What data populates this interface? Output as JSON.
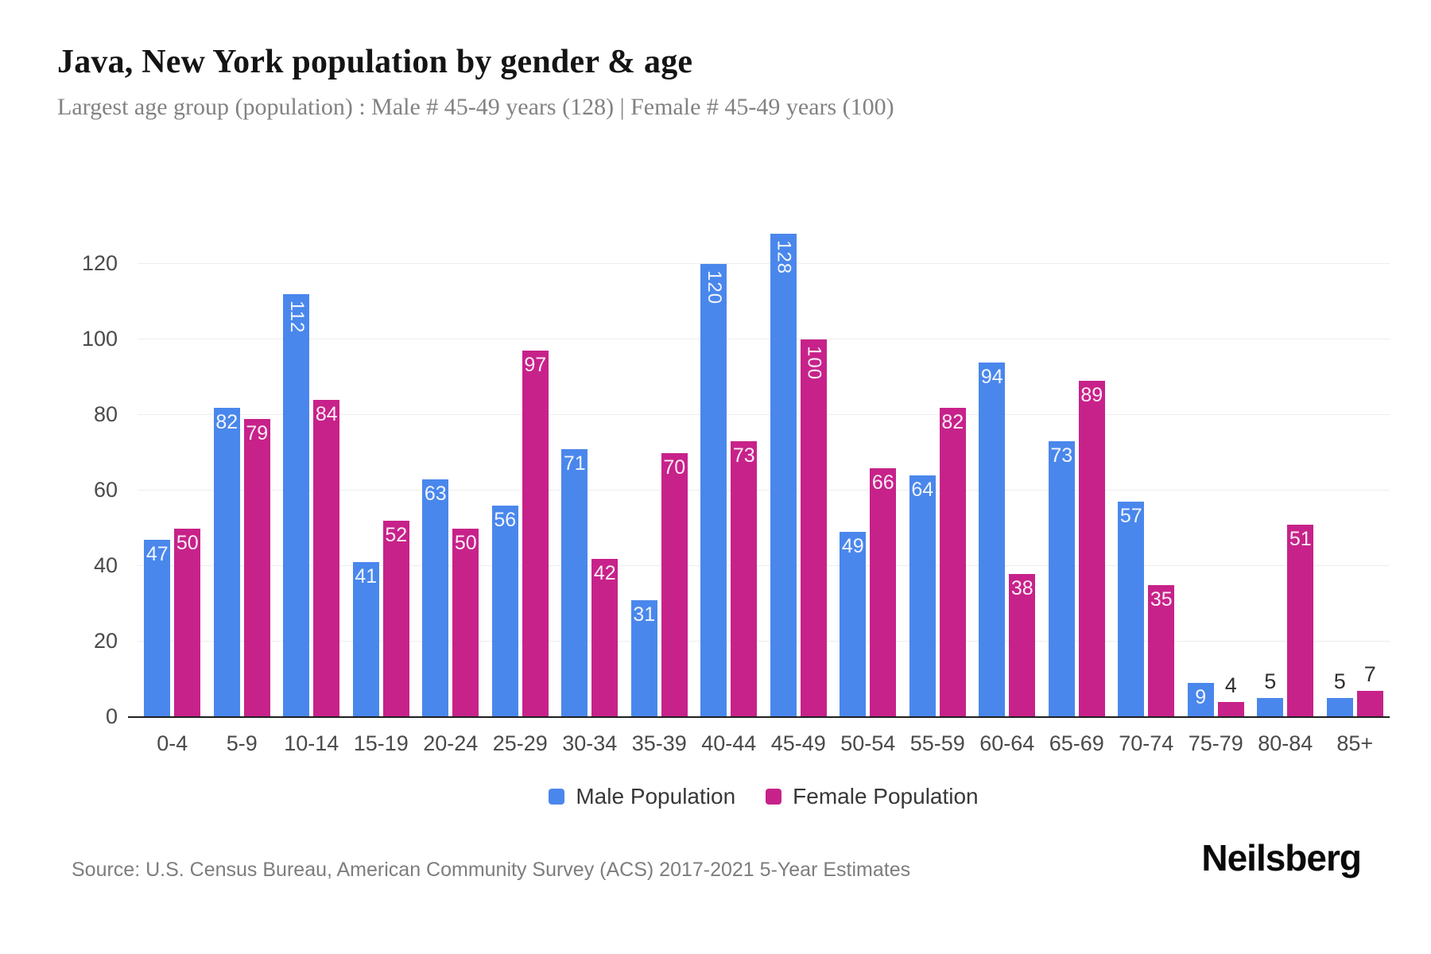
{
  "header": {
    "title": "Java, New York population by gender & age",
    "subtitle": "Largest age group (population) : Male # 45-49 years (128) | Female # 45-49 years (100)"
  },
  "chart_data": {
    "type": "bar",
    "title": "Java, New York population by gender & age",
    "categories": [
      "0-4",
      "5-9",
      "10-14",
      "15-19",
      "20-24",
      "25-29",
      "30-34",
      "35-39",
      "40-44",
      "45-49",
      "50-54",
      "55-59",
      "60-64",
      "65-69",
      "70-74",
      "75-79",
      "80-84",
      "85+"
    ],
    "series": [
      {
        "name": "Male Population",
        "color": "#4A87EC",
        "values": [
          47,
          82,
          112,
          41,
          63,
          56,
          71,
          31,
          120,
          128,
          49,
          64,
          94,
          73,
          57,
          9,
          5,
          5
        ]
      },
      {
        "name": "Female Population",
        "color": "#C7228A",
        "values": [
          50,
          79,
          84,
          52,
          50,
          97,
          42,
          70,
          73,
          100,
          66,
          82,
          38,
          89,
          35,
          4,
          51,
          7
        ]
      }
    ],
    "xlabel": "",
    "ylabel": "",
    "yticks": [
      0,
      20,
      40,
      60,
      80,
      100,
      120
    ],
    "ylim": [
      0,
      135
    ],
    "grid": "horizontal",
    "legend_position": "bottom",
    "value_labels": "shown on bars; white inside tall bars, rotated vertically when value >= 100, dark above bar when bar is very short"
  },
  "footer": {
    "source": "Source: U.S. Census Bureau, American Community Survey (ACS) 2017-2021 5-Year Estimates",
    "brand": "Neilsberg"
  },
  "colors": {
    "male": "#4A87EC",
    "female": "#C7228A",
    "grid": "#ededed",
    "axis": "#1f1f1f",
    "tick_label": "#4a4a4a",
    "label_inside": "rgba(255,255,255,0.92)",
    "label_above": "#2f2f2f",
    "title": "#141414",
    "subtitle": "#828282"
  }
}
